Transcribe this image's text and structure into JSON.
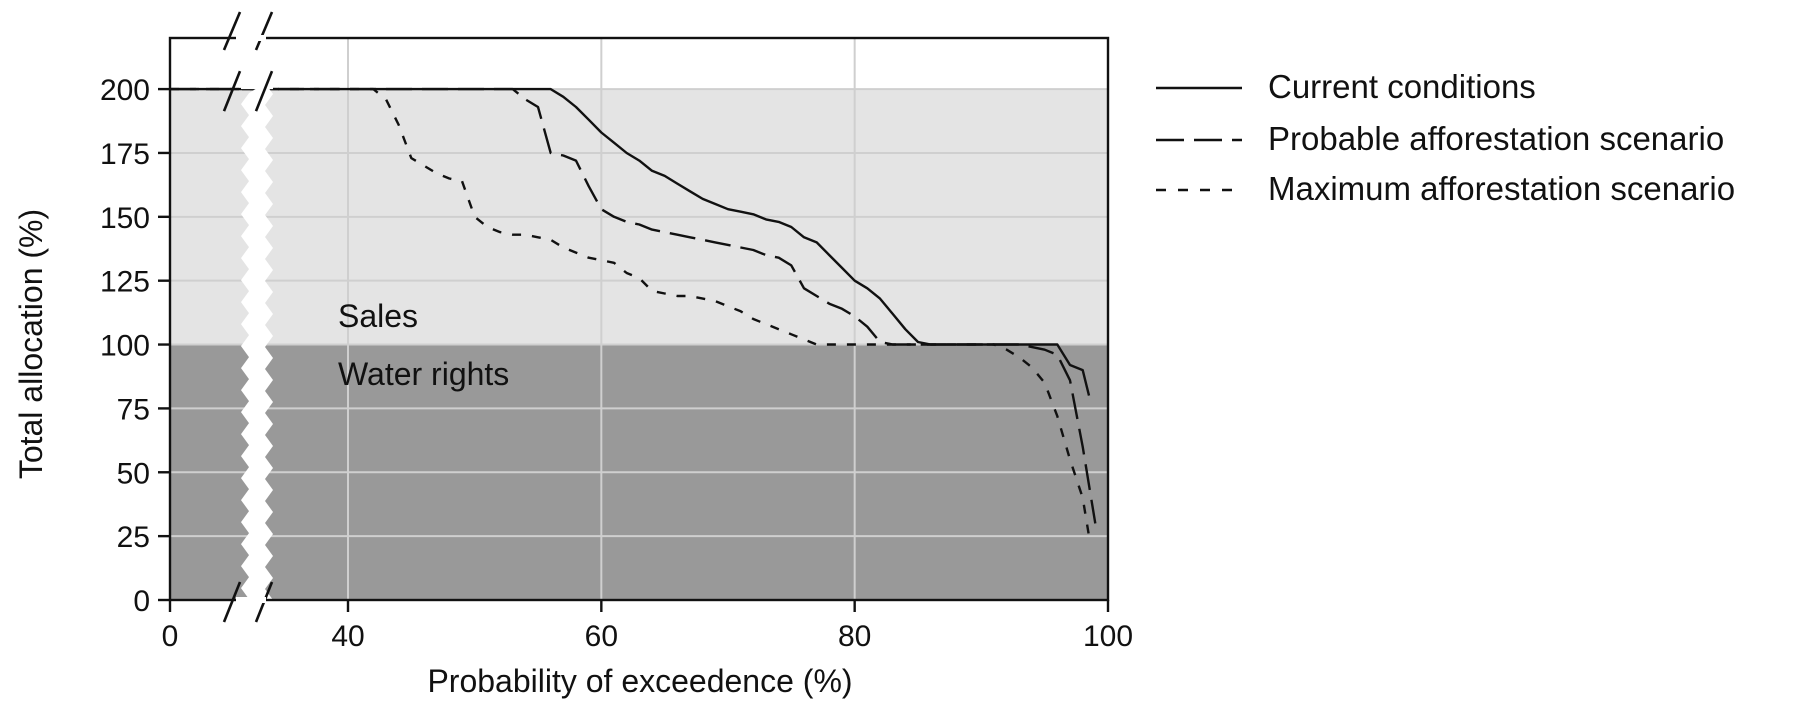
{
  "chart_data": {
    "type": "line",
    "title": "",
    "xlabel": "Probability of exceedence (%)",
    "ylabel": "Total allocation (%)",
    "xlim": [
      0,
      100
    ],
    "ylim": [
      0,
      220
    ],
    "axis_break": true,
    "x_ticks": [
      0,
      40,
      60,
      80,
      100
    ],
    "y_ticks": [
      0,
      25,
      50,
      75,
      100,
      125,
      150,
      175,
      200
    ],
    "grid": true,
    "legend_position": "right",
    "regions": [
      {
        "label": "Sales",
        "from": 100,
        "to": 200,
        "color": "#e4e4e4"
      },
      {
        "label": "Water rights",
        "from": 0,
        "to": 100,
        "color": "#999999"
      }
    ],
    "series": [
      {
        "name": "Current conditions",
        "dash": "solid",
        "points": [
          [
            0,
            200
          ],
          [
            56,
            200
          ],
          [
            57,
            197
          ],
          [
            58,
            193
          ],
          [
            59,
            188
          ],
          [
            60,
            183
          ],
          [
            61,
            179
          ],
          [
            62,
            175
          ],
          [
            63,
            172
          ],
          [
            64,
            168
          ],
          [
            65,
            166
          ],
          [
            66,
            163
          ],
          [
            67,
            160
          ],
          [
            68,
            157
          ],
          [
            69,
            155
          ],
          [
            70,
            153
          ],
          [
            71,
            152
          ],
          [
            72,
            151
          ],
          [
            73,
            149
          ],
          [
            74,
            148
          ],
          [
            75,
            146
          ],
          [
            76,
            142
          ],
          [
            77,
            140
          ],
          [
            78,
            135
          ],
          [
            79,
            130
          ],
          [
            80,
            125
          ],
          [
            81,
            122
          ],
          [
            82,
            118
          ],
          [
            83,
            112
          ],
          [
            84,
            106
          ],
          [
            85,
            101
          ],
          [
            86,
            100
          ],
          [
            96,
            100
          ],
          [
            97,
            92
          ],
          [
            98,
            90
          ],
          [
            98.5,
            80
          ]
        ]
      },
      {
        "name": "Probable afforestation scenario",
        "dash": "long",
        "points": [
          [
            0,
            200
          ],
          [
            53,
            200
          ],
          [
            54,
            196
          ],
          [
            55,
            193
          ],
          [
            56,
            175
          ],
          [
            57,
            174
          ],
          [
            58,
            172
          ],
          [
            59,
            162
          ],
          [
            60,
            153
          ],
          [
            61,
            150
          ],
          [
            62,
            148
          ],
          [
            63,
            147
          ],
          [
            64,
            145
          ],
          [
            65,
            144
          ],
          [
            66,
            143
          ],
          [
            67,
            142
          ],
          [
            68,
            141
          ],
          [
            69,
            140
          ],
          [
            70,
            139
          ],
          [
            71,
            138
          ],
          [
            72,
            137
          ],
          [
            73,
            135
          ],
          [
            74,
            134
          ],
          [
            75,
            131
          ],
          [
            76,
            122
          ],
          [
            77,
            119
          ],
          [
            78,
            116
          ],
          [
            79,
            114
          ],
          [
            80,
            111
          ],
          [
            81,
            107
          ],
          [
            82,
            101
          ],
          [
            83,
            100
          ],
          [
            93,
            100
          ],
          [
            94,
            99
          ],
          [
            95,
            98
          ],
          [
            96,
            96
          ],
          [
            97,
            86
          ],
          [
            98,
            60
          ],
          [
            99,
            30
          ]
        ]
      },
      {
        "name": "Maximum afforestation scenario",
        "dash": "short",
        "points": [
          [
            0,
            200
          ],
          [
            42,
            200
          ],
          [
            43,
            196
          ],
          [
            44,
            186
          ],
          [
            45,
            173
          ],
          [
            46,
            170
          ],
          [
            47,
            167
          ],
          [
            48,
            165
          ],
          [
            49,
            164
          ],
          [
            50,
            150
          ],
          [
            51,
            146
          ],
          [
            52,
            144
          ],
          [
            53,
            143
          ],
          [
            54,
            143
          ],
          [
            55,
            142
          ],
          [
            56,
            141
          ],
          [
            57,
            138
          ],
          [
            58,
            136
          ],
          [
            59,
            134
          ],
          [
            60,
            133
          ],
          [
            61,
            132
          ],
          [
            62,
            128
          ],
          [
            63,
            126
          ],
          [
            64,
            121
          ],
          [
            65,
            120
          ],
          [
            66,
            119
          ],
          [
            67,
            119
          ],
          [
            68,
            118
          ],
          [
            69,
            117
          ],
          [
            70,
            115
          ],
          [
            71,
            113
          ],
          [
            72,
            110
          ],
          [
            73,
            108
          ],
          [
            74,
            106
          ],
          [
            75,
            104
          ],
          [
            76,
            102
          ],
          [
            77,
            100
          ],
          [
            91,
            100
          ],
          [
            92,
            98
          ],
          [
            93,
            95
          ],
          [
            94,
            91
          ],
          [
            95,
            85
          ],
          [
            96,
            72
          ],
          [
            97,
            55
          ],
          [
            98,
            40
          ],
          [
            98.5,
            25
          ]
        ]
      }
    ]
  }
}
